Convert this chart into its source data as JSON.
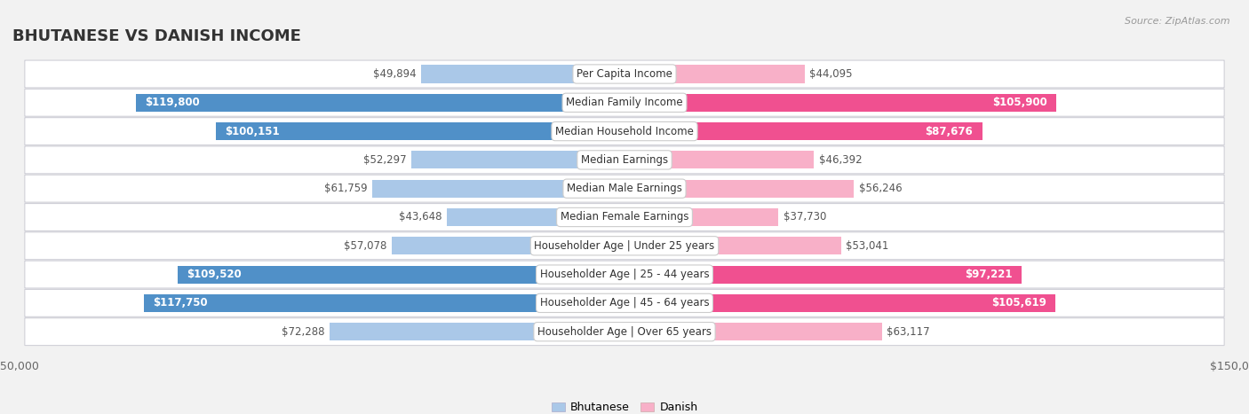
{
  "title": "BHUTANESE VS DANISH INCOME",
  "source": "Source: ZipAtlas.com",
  "categories": [
    "Per Capita Income",
    "Median Family Income",
    "Median Household Income",
    "Median Earnings",
    "Median Male Earnings",
    "Median Female Earnings",
    "Householder Age | Under 25 years",
    "Householder Age | 25 - 44 years",
    "Householder Age | 45 - 64 years",
    "Householder Age | Over 65 years"
  ],
  "bhutanese": [
    49894,
    119800,
    100151,
    52297,
    61759,
    43648,
    57078,
    109520,
    117750,
    72288
  ],
  "danish": [
    44095,
    105900,
    87676,
    46392,
    56246,
    37730,
    53041,
    97221,
    105619,
    63117
  ],
  "max_val": 150000,
  "blue_light": "#aac8e8",
  "blue_dark": "#5090c8",
  "pink_light": "#f8b0c8",
  "pink_dark": "#f05090",
  "bg_color": "#f2f2f2",
  "row_bg": "#ffffff",
  "threshold": 75000,
  "bar_height": 0.62,
  "legend_blue": "Bhutanese",
  "legend_pink": "Danish",
  "label_fontsize": 8.5,
  "value_fontsize": 8.5,
  "title_fontsize": 13
}
